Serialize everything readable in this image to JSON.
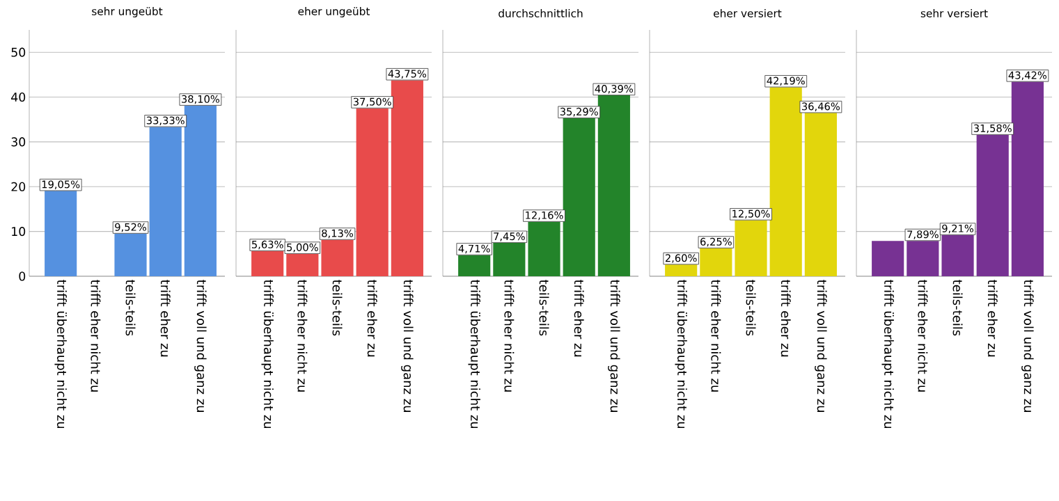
{
  "chart_data": [
    {
      "type": "bar",
      "title": "sehr ungeübt",
      "categories": [
        "trifft überhaupt nicht zu",
        "trifft eher nicht zu",
        "teils-teils",
        "trifft eher zu",
        "trifft voll und ganz zu"
      ],
      "values": [
        19.05,
        0,
        9.52,
        33.33,
        38.1
      ],
      "value_labels": [
        "19,05%",
        null,
        "9,52%",
        "33,33%",
        "38,10%"
      ],
      "color": "#5591e0",
      "ylim": [
        0,
        55
      ],
      "yticks": [
        0,
        10,
        20,
        30,
        40,
        50
      ],
      "grid": "y"
    },
    {
      "type": "bar",
      "title": "eher ungeübt",
      "categories": [
        "trifft überhaupt nicht zu",
        "trifft eher nicht zu",
        "teils-teils",
        "trifft eher zu",
        "trifft voll und ganz zu"
      ],
      "values": [
        5.63,
        5.0,
        8.13,
        37.5,
        43.75
      ],
      "value_labels": [
        "5,63%",
        "5,00%",
        "8,13%",
        "37,50%",
        "43,75%"
      ],
      "color": "#e84b4b",
      "ylim": [
        0,
        55
      ],
      "yticks": [
        0,
        10,
        20,
        30,
        40,
        50
      ],
      "grid": "y",
      "tick_labels": "x"
    },
    {
      "type": "bar",
      "title": "durchschnittlich",
      "categories": [
        "trifft überhaupt nicht zu",
        "trifft eher nicht zu",
        "teils-teils",
        "trifft eher zu",
        "trifft voll und ganz zu"
      ],
      "values": [
        4.71,
        7.45,
        12.16,
        35.29,
        40.39
      ],
      "value_labels": [
        "4,71%",
        "7,45%",
        "12,16%",
        "35,29%",
        "40,39%"
      ],
      "color": "#23842a",
      "ylim": [
        0,
        55
      ],
      "yticks": [
        0,
        10,
        20,
        30,
        40,
        50
      ],
      "grid": "y",
      "tick_labels": "x"
    },
    {
      "type": "bar",
      "title": "eher versiert",
      "categories": [
        "trifft überhaupt nicht zu",
        "trifft eher nicht zu",
        "teils-teils",
        "trifft eher zu",
        "trifft voll und ganz zu"
      ],
      "values": [
        2.6,
        6.25,
        12.5,
        42.19,
        36.46
      ],
      "value_labels": [
        "2,60%",
        "6,25%",
        "12,50%",
        "42,19%",
        "36,46%"
      ],
      "color": "#e2d60c",
      "ylim": [
        0,
        55
      ],
      "yticks": [
        0,
        10,
        20,
        30,
        40,
        50
      ],
      "grid": "y",
      "tick_labels": "x"
    },
    {
      "type": "bar",
      "title": "sehr versiert",
      "categories": [
        "trifft überhaupt nicht zu",
        "trifft eher nicht zu",
        "teils-teils",
        "trifft eher zu",
        "trifft voll und ganz zu"
      ],
      "values": [
        7.9,
        7.89,
        9.21,
        31.58,
        43.42
      ],
      "value_labels": [
        null,
        "7,89%",
        "9,21%",
        "31,58%",
        "43,42%"
      ],
      "color": "#773293",
      "ylim": [
        0,
        55
      ],
      "yticks": [
        0,
        10,
        20,
        30,
        40,
        50
      ],
      "grid": "y",
      "tick_labels": "x"
    }
  ]
}
